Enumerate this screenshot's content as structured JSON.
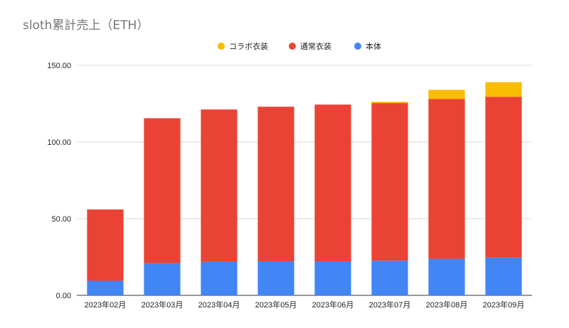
{
  "chart_data": {
    "type": "bar",
    "stacked": true,
    "title": "sloth累計売上（ETH）",
    "xlabel": "",
    "ylabel": "",
    "categories": [
      "2023年02月",
      "2023年03月",
      "2023年04月",
      "2023年05月",
      "2023年06月",
      "2023年07月",
      "2023年08月",
      "2023年09月"
    ],
    "ylim": [
      0,
      150
    ],
    "yticks": [
      "0.00",
      "50.00",
      "100.00",
      "150.00"
    ],
    "grid": true,
    "legend_position": "top-center",
    "series": [
      {
        "name": "本体",
        "color": "#4285f4",
        "values": [
          9.5,
          21.0,
          21.8,
          22.2,
          22.2,
          22.6,
          23.8,
          24.6
        ]
      },
      {
        "name": "通常衣装",
        "color": "#ea4335",
        "values": [
          46.5,
          94.5,
          99.4,
          100.8,
          102.2,
          102.8,
          104.2,
          104.9
        ]
      },
      {
        "name": "コラボ衣装",
        "color": "#fbbc04",
        "values": [
          0,
          0,
          0,
          0,
          0,
          0.8,
          6.0,
          9.5
        ]
      }
    ],
    "legend_order": [
      2,
      1,
      0
    ]
  }
}
